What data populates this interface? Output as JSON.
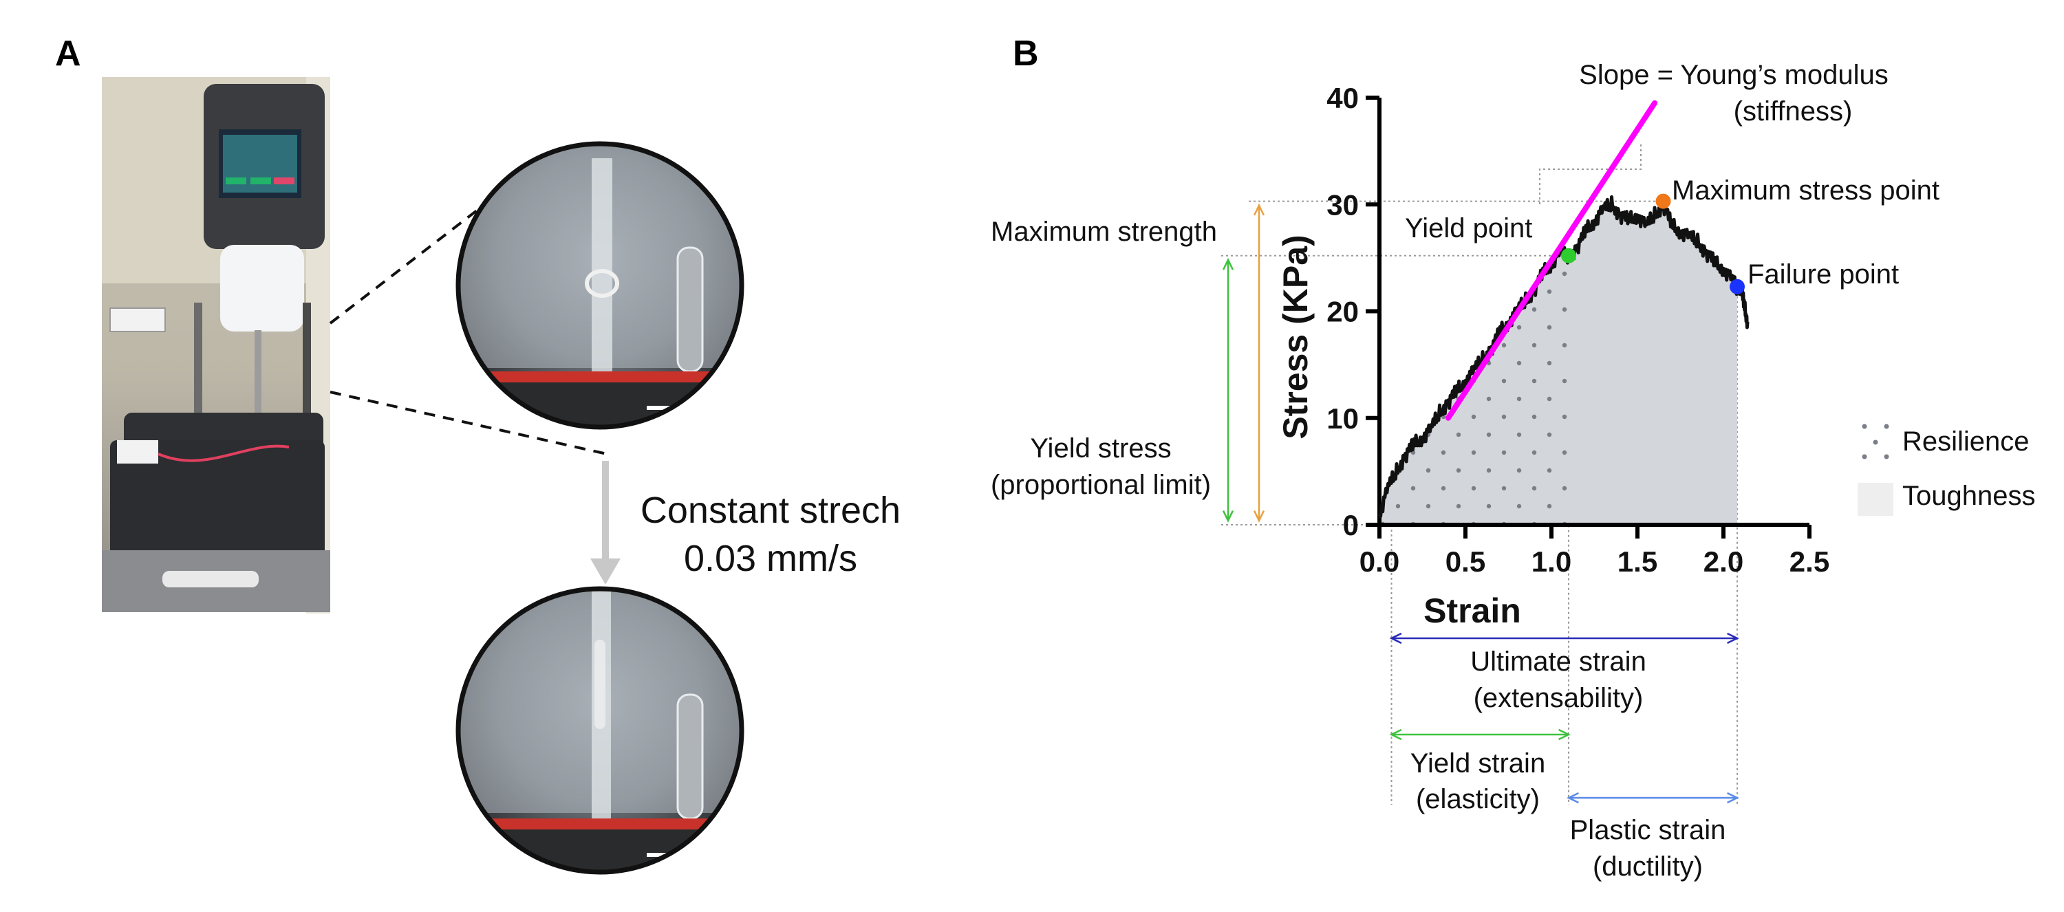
{
  "panel_a": {
    "letter": "A",
    "arrow_label_line1": "Constant strech",
    "arrow_label_line2": "0.03 mm/s"
  },
  "panel_b": {
    "letter": "B",
    "annotations": {
      "slope_line1": "Slope = Young’s modulus",
      "slope_line2": "(stiffness)",
      "max_stress_point": "Maximum stress point",
      "yield_point": "Yield point",
      "failure_point": "Failure point",
      "max_strength": "Maximum strength",
      "yield_stress_line1": "Yield stress",
      "yield_stress_line2": "(proportional limit)",
      "ultimate_line1": "Ultimate strain",
      "ultimate_line2": "(extensability)",
      "yield_strain_line1": "Yield strain",
      "yield_strain_line2": "(elasticity)",
      "plastic_line1": "Plastic strain",
      "plastic_line2": "(ductility)"
    },
    "legend": {
      "resilience": "Resilience",
      "toughness": "Toughness"
    }
  },
  "colors": {
    "curve": "#111111",
    "fill_toughness": "#d3d6db",
    "slope_line": "#ff00ff",
    "yield_point": "#2ecc2e",
    "max_point": "#f07818",
    "failure_point": "#1a33ff",
    "orange_arrow": "#e8a040",
    "green_arrow": "#3ec23e",
    "blue_arrow": "#2a2ab8",
    "light_blue_arrow": "#5a8ae8",
    "scale_bar": "#ffffff",
    "ring_red": "#c8322a"
  },
  "chart_data": {
    "type": "area",
    "title": "",
    "xlabel": "Strain",
    "ylabel": "Stress (KPa)",
    "xlim": [
      0,
      2.5
    ],
    "ylim": [
      0,
      40
    ],
    "xticks": [
      "0.0",
      "0.5",
      "1.0",
      "1.5",
      "2.0",
      "2.5"
    ],
    "yticks": [
      "0",
      "10",
      "20",
      "30",
      "40"
    ],
    "grid": false,
    "legend_position": "right",
    "series": [
      {
        "x": [
          0.0,
          0.05,
          0.1,
          0.15,
          0.2,
          0.25,
          0.3,
          0.35,
          0.4,
          0.45,
          0.5,
          0.55,
          0.6,
          0.65,
          0.7,
          0.75,
          0.8,
          0.85,
          0.9,
          0.95,
          1.0,
          1.05,
          1.1,
          1.15,
          1.2,
          1.25,
          1.3,
          1.35,
          1.4,
          1.45,
          1.5,
          1.55,
          1.6,
          1.65,
          1.7,
          1.75,
          1.8,
          1.85,
          1.9,
          1.95,
          2.0,
          2.05,
          2.08,
          2.1,
          2.12,
          2.14
        ],
        "y": [
          1.0,
          3.5,
          5.0,
          6.5,
          7.5,
          8.2,
          9.0,
          10.5,
          11.5,
          12.5,
          13.5,
          14.5,
          15.5,
          16.5,
          18.0,
          19.0,
          20.0,
          21.0,
          22.0,
          23.5,
          24.5,
          25.5,
          25.0,
          26.0,
          27.5,
          28.5,
          29.5,
          30.0,
          29.0,
          28.5,
          29.0,
          28.0,
          29.0,
          30.0,
          28.0,
          27.5,
          27.0,
          26.5,
          25.5,
          24.5,
          24.0,
          23.0,
          22.0,
          22.5,
          20.5,
          19.0
        ]
      }
    ],
    "slope_line": {
      "x": [
        0.4,
        1.6
      ],
      "y": [
        10.0,
        39.5
      ]
    },
    "points": {
      "yield": {
        "x": 1.1,
        "y": 25.2
      },
      "max_stress": {
        "x": 1.65,
        "y": 30.3
      },
      "failure": {
        "x": 2.08,
        "y": 22.3
      }
    },
    "resilience_region_xmax": 1.1,
    "toughness_region_xmax": 2.08,
    "strain_markers": {
      "start": 0.07,
      "yield": 1.1,
      "failure": 2.08
    }
  }
}
